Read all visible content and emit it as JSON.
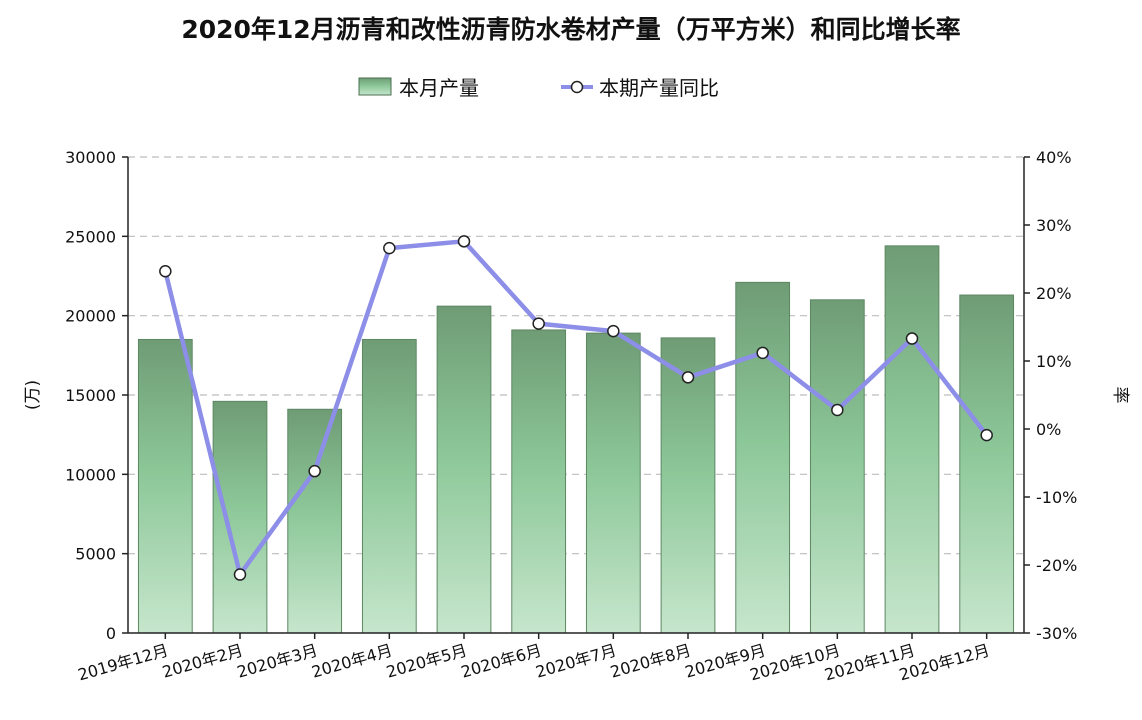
{
  "chart_data": {
    "type": "bar+line",
    "title": "2020年12月沥青和改性沥青防水卷材产量（万平方米）和同比增长率",
    "categories": [
      "2019年12月",
      "2020年2月",
      "2020年3月",
      "2020年4月",
      "2020年5月",
      "2020年6月",
      "2020年7月",
      "2020年8月",
      "2020年9月",
      "2020年10月",
      "2020年11月",
      "2020年12月"
    ],
    "series": [
      {
        "name": "本月产量",
        "type": "bar",
        "axis": "left",
        "color": "#8dc79a",
        "values": [
          18500,
          14600,
          14100,
          18500,
          20600,
          19100,
          18900,
          18600,
          22100,
          21000,
          24400,
          21300
        ]
      },
      {
        "name": "本期产量同比",
        "type": "line",
        "axis": "right",
        "unit": "%",
        "color": "#8c8ee8",
        "values": [
          23.2,
          -21.4,
          -6.2,
          26.6,
          27.6,
          15.5,
          14.4,
          7.6,
          11.2,
          2.8,
          13.3,
          -0.9
        ]
      }
    ],
    "ylabel_left": "(万)",
    "ylabel_right": "率",
    "ylim_left": [
      0,
      30000
    ],
    "ylim_right": [
      -30,
      40
    ],
    "yticks_left": [
      "0",
      "5000",
      "10000",
      "15000",
      "20000",
      "25000",
      "30000"
    ],
    "yticks_right": [
      "-30%",
      "-20%",
      "-10%",
      "0%",
      "10%",
      "20%",
      "30%",
      "40%"
    ],
    "grid": true,
    "legend_position": "top-center"
  }
}
